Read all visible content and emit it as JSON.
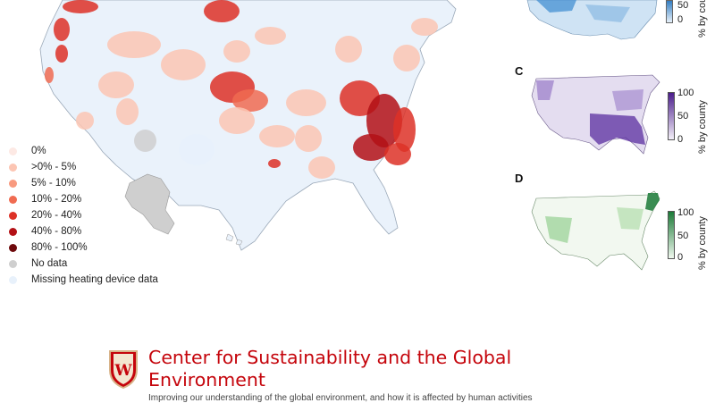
{
  "main_map": {
    "legend": {
      "items": [
        {
          "label": "0%",
          "color": "#fde9e4"
        },
        {
          "label": ">0% - 5%",
          "color": "#fcc5b3"
        },
        {
          "label": "5% - 10%",
          "color": "#f89a7f"
        },
        {
          "label": "10% - 20%",
          "color": "#f06b51"
        },
        {
          "label": "20% - 40%",
          "color": "#dd3127"
        },
        {
          "label": "40% - 80%",
          "color": "#b31116"
        },
        {
          "label": "80% - 100%",
          "color": "#6e0a0c"
        },
        {
          "label": "No data",
          "color": "#cfcfcf"
        },
        {
          "label": "Missing heating device data",
          "color": "#e8f1fb"
        }
      ]
    }
  },
  "panels": {
    "b": {
      "letter": "",
      "colorbar_title": "% by county",
      "ticks": [
        "50",
        "0"
      ],
      "color_low": "#eef5fc",
      "color_high": "#1f6fb4"
    },
    "c": {
      "letter": "C",
      "colorbar_title": "% by county",
      "ticks": [
        "100",
        "50",
        "0"
      ],
      "color_low": "#f3eff8",
      "color_high": "#4b1d8c"
    },
    "d": {
      "letter": "D",
      "colorbar_title": "% by county",
      "ticks": [
        "100",
        "50",
        "0"
      ],
      "color_low": "#eff8ee",
      "color_high": "#1b7a37"
    }
  },
  "footer": {
    "org_line1": "Center for Sustainability and the Global",
    "org_line2": "Environment",
    "tagline": "Improving our understanding of the global environment, and how it is affected by human activities",
    "brand_color": "#c5050c"
  }
}
